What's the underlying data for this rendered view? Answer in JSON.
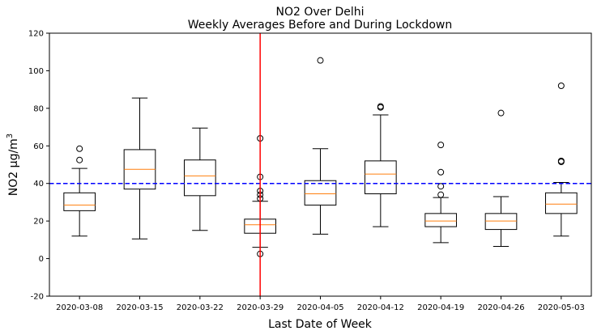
{
  "chart_data": {
    "type": "box",
    "title": [
      "NO2 Over Delhi",
      "Weekly Averages Before and During Lockdown"
    ],
    "xlabel": "Last Date of Week",
    "ylabel": "NO2 μg/m",
    "ylabel_superscript": "3",
    "categories": [
      "2020-03-08",
      "2020-03-15",
      "2020-03-22",
      "2020-03-29",
      "2020-04-05",
      "2020-04-12",
      "2020-04-19",
      "2020-04-26",
      "2020-05-03"
    ],
    "boxes": [
      {
        "whislo": 12,
        "q1": 25.5,
        "med": 28.5,
        "q3": 35,
        "whishi": 48,
        "fliers": [
          52.5,
          58.5
        ]
      },
      {
        "whislo": 10.5,
        "q1": 37,
        "med": 47.5,
        "q3": 58,
        "whishi": 85.5,
        "fliers": []
      },
      {
        "whislo": 15,
        "q1": 33.5,
        "med": 44,
        "q3": 52.5,
        "whishi": 69.5,
        "fliers": []
      },
      {
        "whislo": 6,
        "q1": 13.5,
        "med": 18,
        "q3": 21,
        "whishi": 30.5,
        "fliers": [
          2.5,
          32,
          34,
          36,
          43.5,
          64
        ]
      },
      {
        "whislo": 13,
        "q1": 28.5,
        "med": 34.5,
        "q3": 41.5,
        "whishi": 58.5,
        "fliers": [
          105.5
        ]
      },
      {
        "whislo": 17,
        "q1": 34.5,
        "med": 45,
        "q3": 52,
        "whishi": 76.5,
        "fliers": [
          80.5,
          81
        ]
      },
      {
        "whislo": 8.5,
        "q1": 17,
        "med": 20,
        "q3": 24,
        "whishi": 32.5,
        "fliers": [
          34,
          38.5,
          46,
          60.5
        ]
      },
      {
        "whislo": 6.5,
        "q1": 15.5,
        "med": 20,
        "q3": 24,
        "whishi": 33,
        "fliers": [
          77.5
        ]
      },
      {
        "whislo": 12,
        "q1": 24,
        "med": 29,
        "q3": 35,
        "whishi": 40.5,
        "fliers": [
          51.5,
          52,
          92
        ]
      }
    ],
    "ylim": [
      -20,
      120
    ],
    "yticks": [
      -20,
      0,
      20,
      40,
      60,
      80,
      100,
      120
    ],
    "hline": {
      "y": 40,
      "color": "#0000ff",
      "style": "dashed"
    },
    "vline": {
      "x": 3.5,
      "color": "#ff0000"
    },
    "box_color": "#000000",
    "median_color": "#ff7f0e",
    "grid": false
  }
}
